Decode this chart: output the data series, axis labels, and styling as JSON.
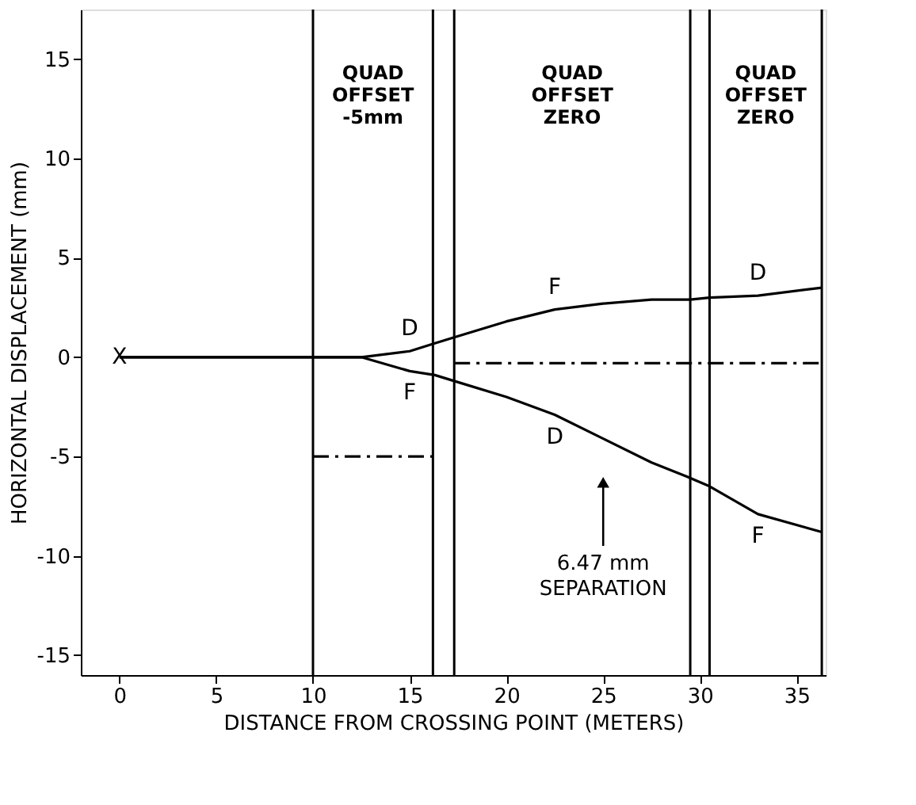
{
  "chart_data": {
    "type": "line",
    "xlabel": "DISTANCE FROM CROSSING POINT (METERS)",
    "ylabel": "HORIZONTAL DISPLACEMENT (mm)",
    "xlim": [
      -2,
      36.5
    ],
    "ylim": [
      -16,
      17.5
    ],
    "xticks": [
      0,
      5,
      10,
      15,
      20,
      25,
      30,
      35
    ],
    "yticks": [
      -15,
      -10,
      -5,
      0,
      5,
      10,
      15
    ],
    "grid": false,
    "marker": "none",
    "series": [
      {
        "color": "#000000",
        "x": [
          0,
          10,
          12.5,
          15,
          16.3,
          17.3,
          20,
          22.5,
          25,
          27.5,
          29.5,
          30.5,
          33,
          36.3
        ],
        "values": [
          0,
          0,
          0,
          0.3,
          0.7,
          1.0,
          1.8,
          2.4,
          2.7,
          2.9,
          2.9,
          3.0,
          3.1,
          3.5
        ]
      },
      {
        "color": "#000000",
        "x": [
          0,
          10,
          12.5,
          15,
          16.3,
          17.3,
          20,
          22.5,
          25,
          27.5,
          29.3,
          30.5,
          33,
          36.3
        ],
        "values": [
          0,
          0,
          0,
          -0.7,
          -0.9,
          -1.2,
          -2.0,
          -2.9,
          -4.1,
          -5.3,
          -6.0,
          -6.5,
          -7.9,
          -8.8
        ]
      },
      {
        "color": "#000000",
        "line_style": "dashed",
        "x": [
          10,
          16.2
        ],
        "values": [
          -5,
          -5
        ]
      },
      {
        "color": "#000000",
        "line_style": "dashed",
        "x": [
          17.3,
          36.3
        ],
        "values": [
          -0.3,
          -0.3
        ]
      }
    ],
    "ref_lines": [
      {
        "axis": "x",
        "value": 10
      },
      {
        "axis": "x",
        "value": 16.2
      },
      {
        "axis": "x",
        "value": 17.3
      },
      {
        "axis": "x",
        "value": 29.5
      },
      {
        "axis": "x",
        "value": 30.5
      },
      {
        "axis": "x",
        "value": 36.3
      }
    ],
    "annotations": [
      "QUAD OFFSET -5mm",
      "QUAD OFFSET ZERO",
      "QUAD OFFSET ZERO",
      {
        "text": "X",
        "x": 0,
        "y": 0
      },
      {
        "text": "D",
        "x": 15,
        "y": 0.3
      },
      {
        "text": "F",
        "x": 15,
        "y": -0.7
      },
      {
        "text": "F",
        "x": 22.5,
        "y": 2.4
      },
      {
        "text": "D",
        "x": 22.5,
        "y": -2.9
      },
      {
        "text": "D",
        "x": 33,
        "y": 3.1
      },
      {
        "text": "F",
        "x": 33,
        "y": -7.9
      },
      {
        "text": "6.47 mm SEPARATION",
        "x": 25,
        "y": -6.3
      }
    ]
  }
}
